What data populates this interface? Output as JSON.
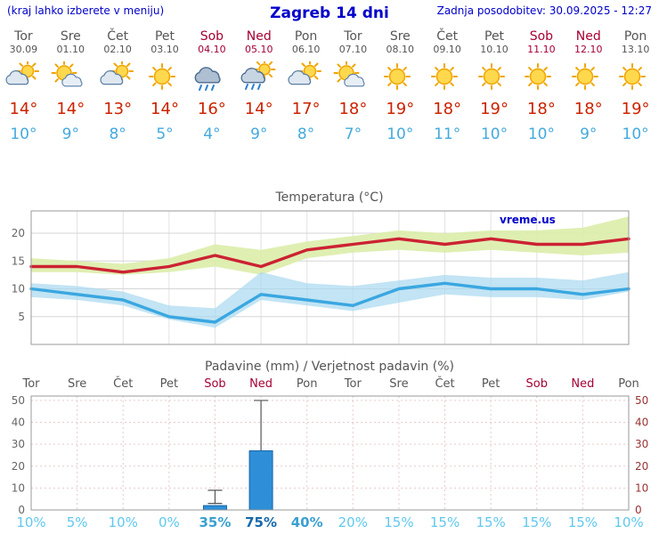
{
  "header": {
    "left_note": "(kraj lahko izberete v meniju)",
    "title": "Zagreb 14 dni",
    "updated": "Zadnja posodobitev: 30.09.2025 - 12:27"
  },
  "watermark": "vreme.us",
  "colors": {
    "link_blue": "#0000cc",
    "weekday_text": "#555555",
    "weekend_text": "#a50034",
    "tmax_text": "#cc2200",
    "tmin_text": "#44aadd",
    "temp_line_max": "#cc2233",
    "temp_line_min": "#3aa7e0",
    "band_max": "#dcedaa",
    "band_min": "#a8d8f0",
    "bar_fill": "#2e8fd8",
    "bar_stroke": "#1565a8",
    "axis_left_text": "#666666",
    "axis_right_text": "#993333",
    "prob_low": "#5fc8ee",
    "prob_mid": "#3aa0d0",
    "prob_high": "#1668ab"
  },
  "forecast": {
    "days": [
      {
        "name": "Tor",
        "date": "30.09",
        "weekend": false,
        "icon": "cloud-sun",
        "tmax": "14°",
        "tmin": "10°"
      },
      {
        "name": "Sre",
        "date": "01.10",
        "weekend": false,
        "icon": "sun-cloud",
        "tmax": "14°",
        "tmin": "9°"
      },
      {
        "name": "Čet",
        "date": "02.10",
        "weekend": false,
        "icon": "cloud-sun",
        "tmax": "13°",
        "tmin": "8°"
      },
      {
        "name": "Pet",
        "date": "03.10",
        "weekend": false,
        "icon": "sunny",
        "tmax": "14°",
        "tmin": "5°"
      },
      {
        "name": "Sob",
        "date": "04.10",
        "weekend": true,
        "icon": "rain",
        "tmax": "16°",
        "tmin": "4°"
      },
      {
        "name": "Ned",
        "date": "05.10",
        "weekend": true,
        "icon": "rain-sun",
        "tmax": "14°",
        "tmin": "9°"
      },
      {
        "name": "Pon",
        "date": "06.10",
        "weekend": false,
        "icon": "cloud-sun",
        "tmax": "17°",
        "tmin": "8°"
      },
      {
        "name": "Tor",
        "date": "07.10",
        "weekend": false,
        "icon": "sun-cloud",
        "tmax": "18°",
        "tmin": "7°"
      },
      {
        "name": "Sre",
        "date": "08.10",
        "weekend": false,
        "icon": "sunny",
        "tmax": "19°",
        "tmin": "10°"
      },
      {
        "name": "Čet",
        "date": "09.10",
        "weekend": false,
        "icon": "sunny",
        "tmax": "18°",
        "tmin": "11°"
      },
      {
        "name": "Pet",
        "date": "10.10",
        "weekend": false,
        "icon": "sunny",
        "tmax": "19°",
        "tmin": "10°"
      },
      {
        "name": "Sob",
        "date": "11.10",
        "weekend": true,
        "icon": "sunny",
        "tmax": "18°",
        "tmin": "10°"
      },
      {
        "name": "Ned",
        "date": "12.10",
        "weekend": true,
        "icon": "sunny",
        "tmax": "18°",
        "tmin": "9°"
      },
      {
        "name": "Pon",
        "date": "13.10",
        "weekend": false,
        "icon": "sunny",
        "tmax": "19°",
        "tmin": "10°"
      }
    ]
  },
  "chart_data": [
    {
      "type": "line",
      "title": "Temperatura (°C)",
      "categories": [
        "Tor",
        "Sre",
        "Čet",
        "Pet",
        "Sob",
        "Ned",
        "Pon",
        "Tor",
        "Sre",
        "Čet",
        "Pet",
        "Sob",
        "Ned",
        "Pon"
      ],
      "ylim": [
        0,
        24
      ],
      "yticks": [
        5,
        10,
        15,
        20
      ],
      "grid": true,
      "series": [
        {
          "name": "max-temp",
          "values": [
            14,
            14,
            13,
            14,
            16,
            14,
            17,
            18,
            19,
            18,
            19,
            18,
            18,
            19
          ]
        },
        {
          "name": "min-temp",
          "values": [
            10,
            9,
            8,
            5,
            4,
            9,
            8,
            7,
            10,
            11,
            10,
            10,
            9,
            10
          ]
        }
      ],
      "bands": [
        {
          "name": "max-range",
          "upper": [
            15.5,
            15,
            14.5,
            15.5,
            18,
            17,
            18.5,
            19.5,
            20.5,
            20,
            20.5,
            20.5,
            21,
            23
          ],
          "lower": [
            13,
            13,
            12.5,
            13,
            14,
            12.5,
            15.5,
            16.5,
            17,
            16.5,
            17,
            16.5,
            16,
            16.5
          ]
        },
        {
          "name": "min-range",
          "upper": [
            11,
            10.5,
            9.5,
            7,
            6.5,
            13,
            11,
            10.5,
            11.5,
            12.5,
            12,
            12,
            11.5,
            13
          ],
          "lower": [
            8.5,
            8,
            7,
            4.5,
            3,
            8,
            7,
            6,
            7.5,
            9,
            8.5,
            8.5,
            8,
            9.5
          ]
        }
      ]
    },
    {
      "type": "bar",
      "title": "Padavine (mm) / Verjetnost padavin (%)",
      "categories": [
        "Tor",
        "Sre",
        "Čet",
        "Pet",
        "Sob",
        "Ned",
        "Pon",
        "Tor",
        "Sre",
        "Čet",
        "Pet",
        "Sob",
        "Ned",
        "Pon"
      ],
      "ylim": [
        0,
        52
      ],
      "yticks": [
        0,
        10,
        20,
        30,
        40,
        50
      ],
      "values": [
        0,
        0,
        0,
        0,
        2,
        27,
        0,
        0,
        0,
        0,
        0,
        0,
        0,
        0
      ],
      "range_low": [
        0,
        0,
        0,
        0,
        3,
        5,
        0,
        0,
        0,
        0,
        0,
        0,
        0,
        0
      ],
      "range_high": [
        0,
        0,
        0,
        0,
        9,
        50,
        0,
        0,
        0,
        0,
        0,
        0,
        0,
        0
      ],
      "probabilities": [
        "10%",
        "5%",
        "10%",
        "0%",
        "35%",
        "75%",
        "40%",
        "20%",
        "15%",
        "15%",
        "15%",
        "15%",
        "15%",
        "10%"
      ]
    }
  ]
}
